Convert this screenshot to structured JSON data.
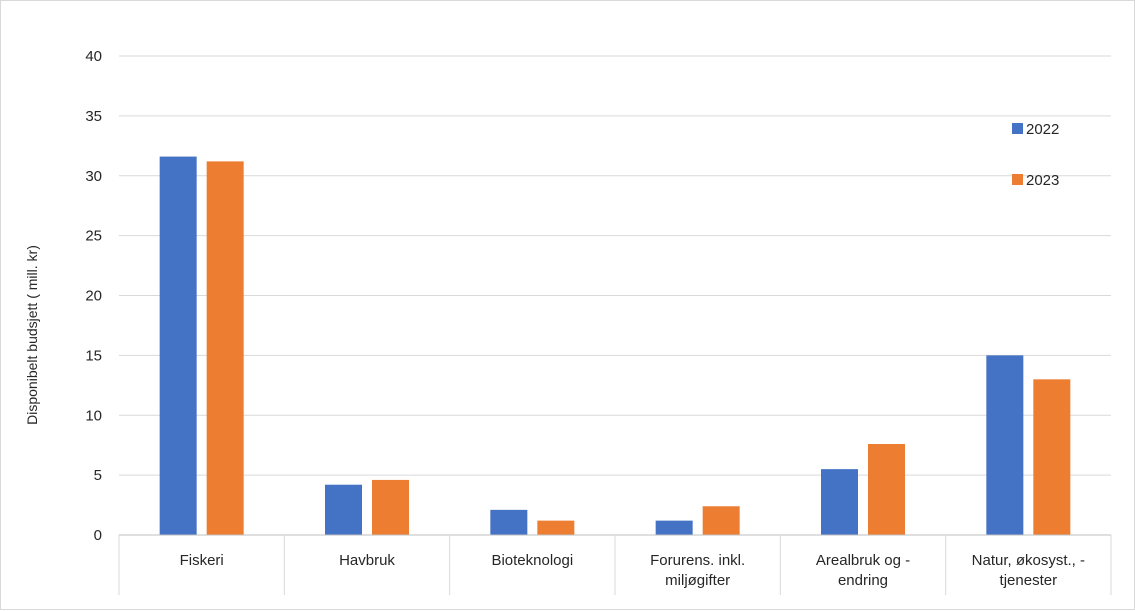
{
  "chart_data": {
    "type": "bar",
    "title": "",
    "xlabel": "",
    "ylabel": "Disponibelt budsjett ( mill. kr)",
    "ylim": [
      0,
      40
    ],
    "yticks": [
      0,
      5,
      10,
      15,
      20,
      25,
      30,
      35,
      40
    ],
    "grid": true,
    "legend_position": "right",
    "categories": [
      [
        "Fiskeri"
      ],
      [
        "Havbruk"
      ],
      [
        "Bioteknologi"
      ],
      [
        "Forurens. inkl.",
        "miljøgifter"
      ],
      [
        "Arealbruk og -",
        "endring"
      ],
      [
        "Natur, økosyst., -",
        "tjenester"
      ]
    ],
    "series": [
      {
        "name": "2022",
        "color": "#4472c4",
        "values": [
          31.6,
          4.2,
          2.1,
          1.2,
          5.5,
          15.0
        ]
      },
      {
        "name": "2023",
        "color": "#ed7d31",
        "values": [
          31.2,
          4.6,
          1.2,
          2.4,
          7.6,
          13.0
        ]
      }
    ]
  }
}
